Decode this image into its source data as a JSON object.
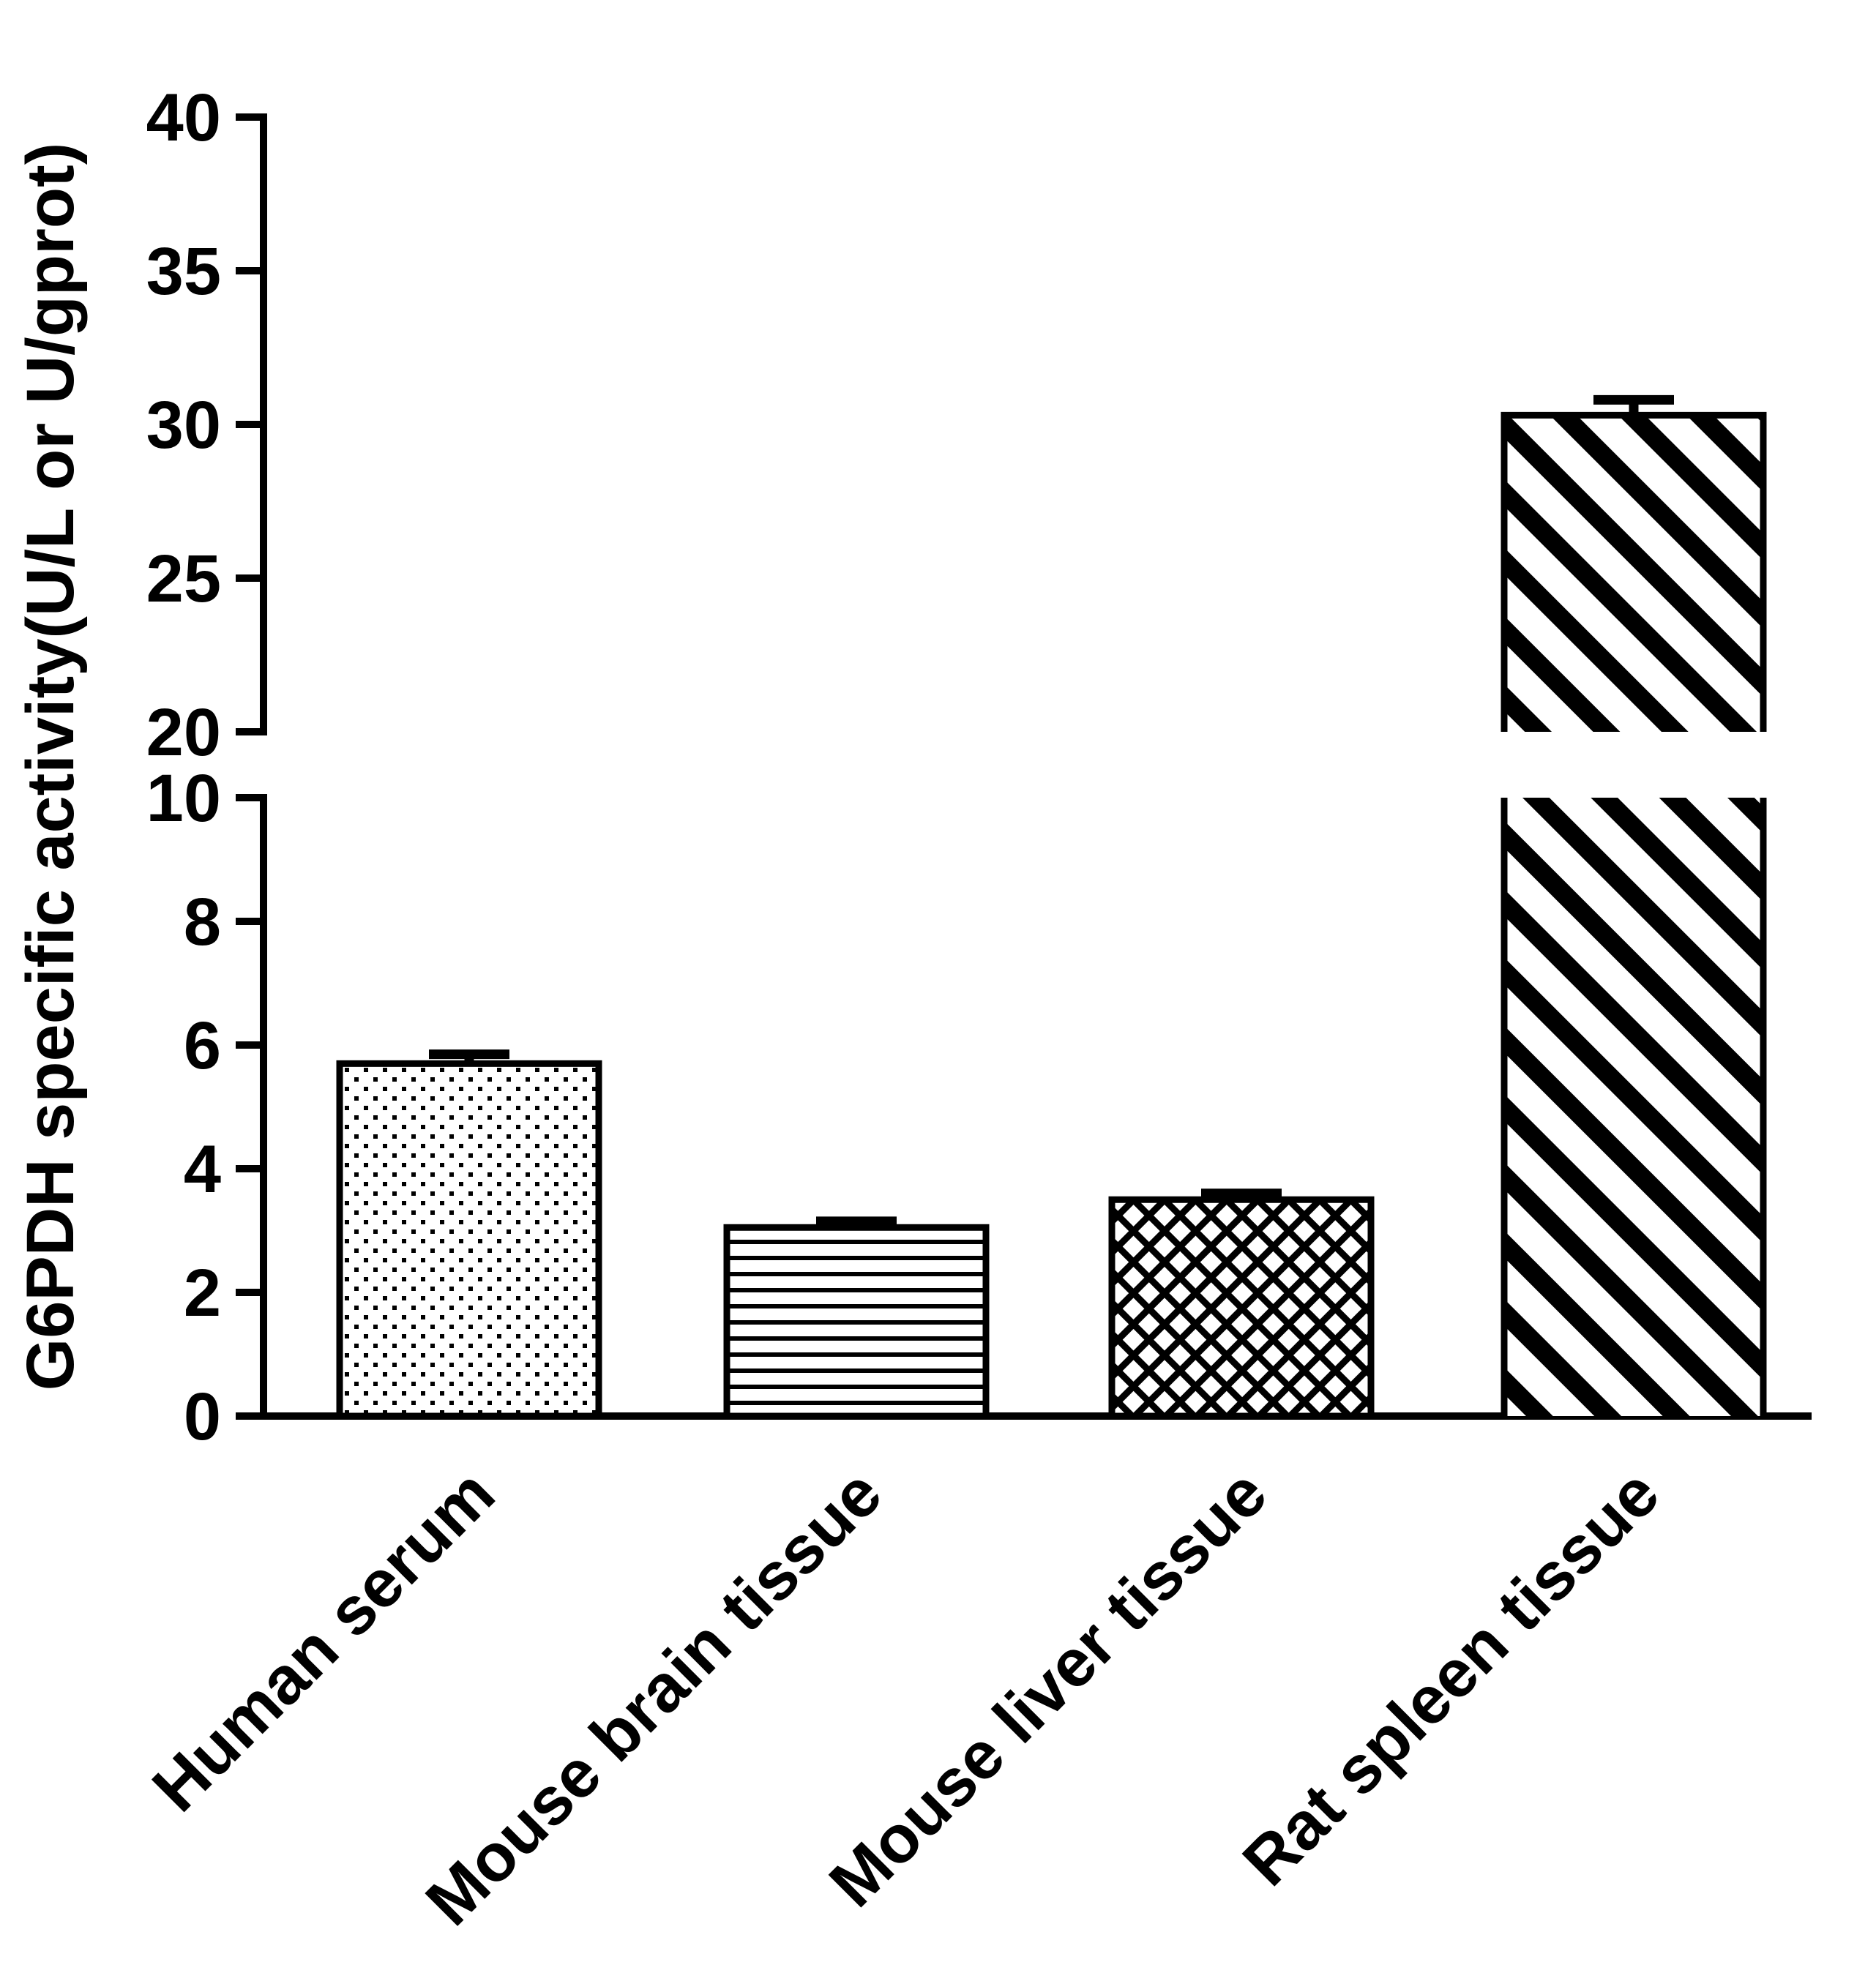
{
  "chart_data": {
    "type": "bar",
    "title": "",
    "xlabel": "",
    "ylabel": "G6PDH specific activity(U/L or U/gprot)",
    "categories": [
      "Human serum",
      "Mouse brain tissue",
      "Mouse liver tissue",
      "Rat spleen tissue"
    ],
    "values": [
      5.7,
      3.05,
      3.5,
      30.3
    ],
    "error_bars": [
      0.15,
      0.1,
      0.1,
      0.5
    ],
    "bar_patterns": [
      "dots",
      "horizontal-lines",
      "crosshatch",
      "diagonal-stripes"
    ],
    "bar_fill_color": "#ffffff",
    "pattern_color": "#000000",
    "axis_color": "#000000",
    "background_color": "#ffffff",
    "grid": false,
    "legend": "none",
    "y_axis": {
      "broken": true,
      "lower_segment": {
        "range": [
          0,
          10
        ],
        "ticks": [
          0,
          2,
          4,
          6,
          8,
          10
        ]
      },
      "upper_segment": {
        "range": [
          20,
          40
        ],
        "ticks": [
          20,
          25,
          30,
          35,
          40
        ]
      }
    }
  }
}
